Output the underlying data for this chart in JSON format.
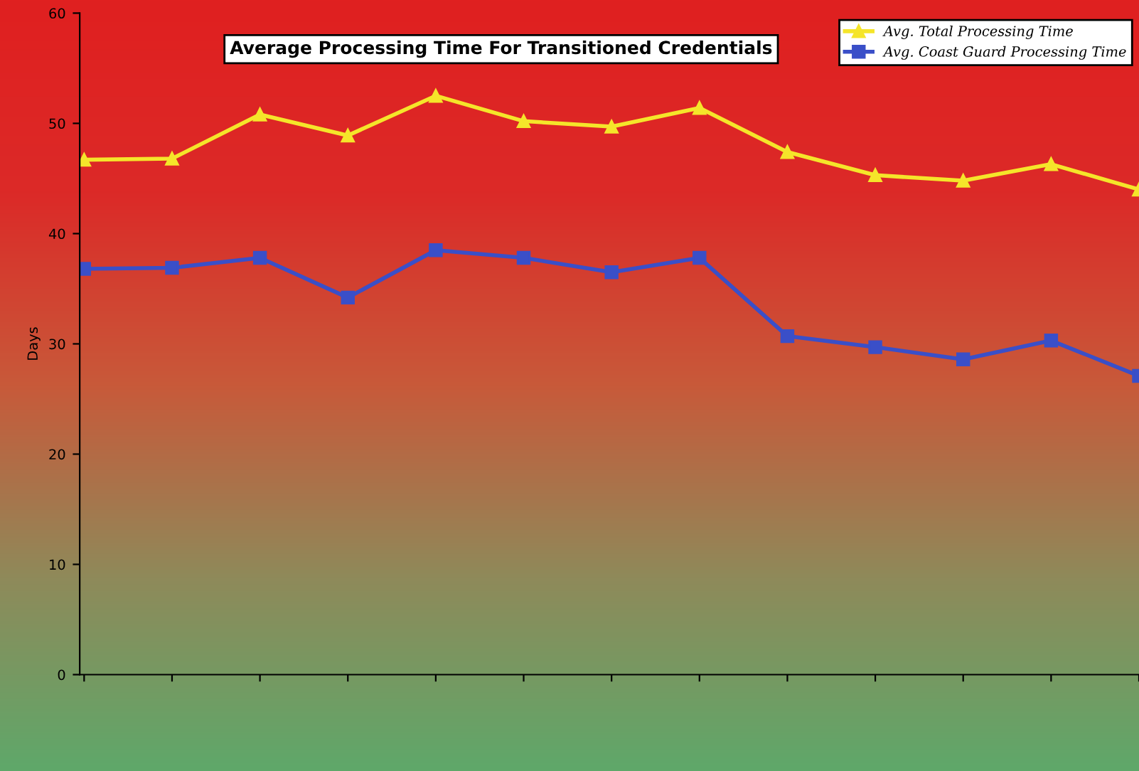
{
  "chart_data": {
    "type": "line",
    "title": "Average Processing Time For Transitioned Credentials",
    "ylabel": "Days",
    "categories": [
      null,
      null,
      null,
      null,
      null,
      null,
      null,
      null,
      null,
      null,
      null,
      null,
      null
    ],
    "series": [
      {
        "name": "Avg. Total Processing Time",
        "color": "#f5e52a",
        "marker": "triangle",
        "values": [
          46.7,
          46.8,
          50.8,
          48.9,
          52.5,
          50.2,
          49.7,
          51.4,
          47.4,
          45.3,
          44.8,
          46.3,
          44.0
        ]
      },
      {
        "name": "Avg. Coast Guard Processing Time",
        "color": "#3a4fc8",
        "marker": "square",
        "values": [
          36.8,
          36.9,
          37.8,
          34.2,
          38.5,
          37.8,
          36.5,
          37.8,
          30.7,
          29.7,
          28.6,
          30.3,
          27.1
        ]
      }
    ],
    "ylim": [
      0,
      60
    ],
    "yticks": [
      0,
      10,
      20,
      30,
      40,
      50,
      60
    ],
    "grid": false,
    "legend": "top right"
  }
}
